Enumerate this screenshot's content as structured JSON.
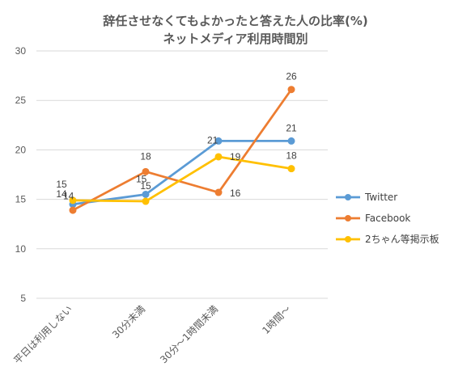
{
  "chart_data": {
    "type": "line",
    "title": "辞任させなくてもよかったと答えた人の比率(%)",
    "subtitle": "ネットメディア利用時間別",
    "categories": [
      "平日は利用しない",
      "30分未満",
      "30分～1時間未満",
      "1時間～"
    ],
    "ylim": [
      5,
      30
    ],
    "yticks": [
      5,
      10,
      15,
      20,
      25,
      30
    ],
    "grid": true,
    "legend_position": "right",
    "series": [
      {
        "name": "Twitter",
        "values": [
          14.5,
          15.5,
          20.9,
          20.9
        ],
        "labels": [
          "14",
          "15",
          "21",
          "21"
        ],
        "color": "#5b9bd5"
      },
      {
        "name": "Facebook",
        "values": [
          13.9,
          17.8,
          15.7,
          26.1
        ],
        "labels": [
          "14",
          "18",
          "16",
          "26"
        ],
        "color": "#ed7d31"
      },
      {
        "name": "2ちゃん等掲示板",
        "values": [
          14.9,
          14.8,
          19.3,
          18.1
        ],
        "labels": [
          "15",
          "15",
          "19",
          "18"
        ],
        "color": "#ffc000"
      }
    ]
  }
}
